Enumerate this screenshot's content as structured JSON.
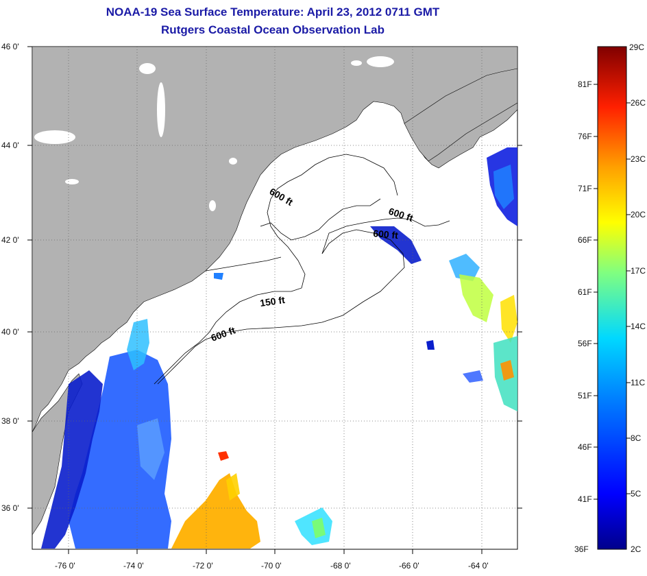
{
  "title": {
    "line1": "NOAA-19 Sea Surface Temperature:  April 23, 2012 0711 GMT",
    "line2": "Rutgers Coastal Ocean Observation Lab"
  },
  "map": {
    "lat_labels": [
      "46 0'",
      "44 0'",
      "42 0'",
      "40 0'",
      "38 0'",
      "36 0'"
    ],
    "lon_labels": [
      "-76 0'",
      "-74 0'",
      "-72 0'",
      "-70 0'",
      "-68 0'",
      "-66 0'",
      "-64 0'"
    ],
    "lat_values": [
      46,
      44,
      42,
      40,
      38,
      36
    ],
    "lon_values": [
      -76,
      -74,
      -72,
      -70,
      -68,
      -66,
      -64
    ],
    "contour_labels": [
      "600 ft",
      "600 ft",
      "600 ft",
      "150 ft",
      "600 ft"
    ],
    "land_color": "#b2b2b2",
    "ocean_color": "#ffffff"
  },
  "colorbar": {
    "celsius_labels": [
      "29C",
      "26C",
      "23C",
      "20C",
      "17C",
      "14C",
      "11C",
      "8C",
      "5C",
      "2C"
    ],
    "fahrenheit_labels": [
      "81F",
      "76F",
      "71F",
      "66F",
      "61F",
      "56F",
      "51F",
      "46F",
      "41F",
      "36F"
    ],
    "range_c": [
      2,
      29
    ],
    "range_f": [
      36,
      84
    ]
  }
}
